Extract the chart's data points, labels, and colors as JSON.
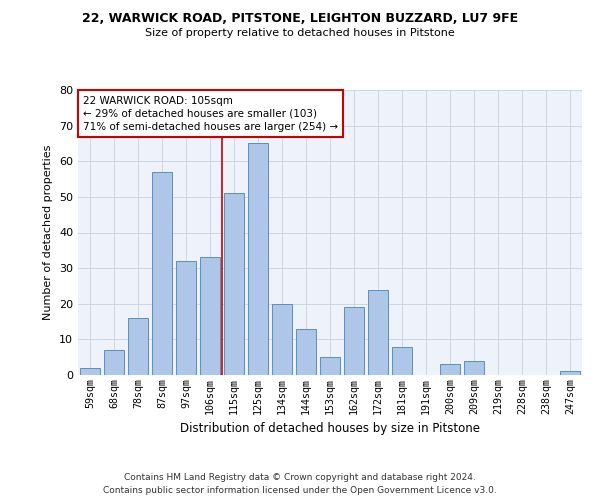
{
  "title1": "22, WARWICK ROAD, PITSTONE, LEIGHTON BUZZARD, LU7 9FE",
  "title2": "Size of property relative to detached houses in Pitstone",
  "xlabel": "Distribution of detached houses by size in Pitstone",
  "ylabel": "Number of detached properties",
  "bar_labels": [
    "59sqm",
    "68sqm",
    "78sqm",
    "87sqm",
    "97sqm",
    "106sqm",
    "115sqm",
    "125sqm",
    "134sqm",
    "144sqm",
    "153sqm",
    "162sqm",
    "172sqm",
    "181sqm",
    "191sqm",
    "200sqm",
    "209sqm",
    "219sqm",
    "228sqm",
    "238sqm",
    "247sqm"
  ],
  "bar_values": [
    2,
    7,
    16,
    57,
    32,
    33,
    51,
    65,
    20,
    13,
    5,
    19,
    24,
    8,
    0,
    3,
    4,
    0,
    0,
    0,
    1
  ],
  "bar_color": "#aec6e8",
  "bar_edge_color": "#5a8fc0",
  "annotation_line1": "22 WARWICK ROAD: 105sqm",
  "annotation_line2": "← 29% of detached houses are smaller (103)",
  "annotation_line3": "71% of semi-detached houses are larger (254) →",
  "annotation_box_color": "#cc0000",
  "red_line_x": 5.5,
  "ylim": [
    0,
    80
  ],
  "yticks": [
    0,
    10,
    20,
    30,
    40,
    50,
    60,
    70,
    80
  ],
  "footer_line1": "Contains HM Land Registry data © Crown copyright and database right 2024.",
  "footer_line2": "Contains public sector information licensed under the Open Government Licence v3.0.",
  "bg_color": "#eef2fa",
  "grid_color": "#c8d0e0"
}
